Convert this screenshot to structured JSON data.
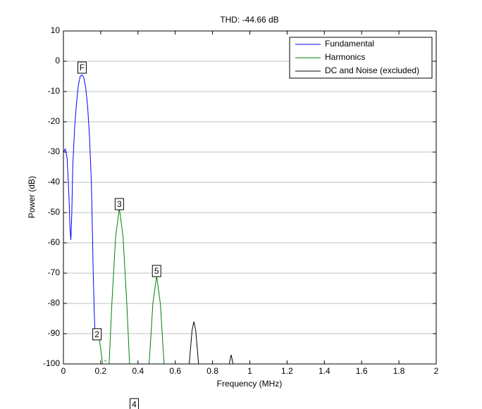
{
  "chart_data": {
    "type": "line",
    "title": "THD: -44.66 dB",
    "x_label": "Frequency (MHz)",
    "y_label": "Power (dB)",
    "xlim": [
      0,
      2
    ],
    "ylim": [
      -100,
      10
    ],
    "xticks": [
      0,
      0.2,
      0.4,
      0.6,
      0.8,
      1,
      1.2,
      1.4,
      1.6,
      1.8,
      2
    ],
    "yticks": [
      10,
      0,
      -10,
      -20,
      -30,
      -40,
      -50,
      -60,
      -70,
      -80,
      -90,
      -100
    ],
    "ygrid": true,
    "legend": "upper right",
    "series": [
      {
        "name": "Fundamental",
        "color": "#0000ff",
        "x": [
          0,
          0.01,
          0.02,
          0.03,
          0.035,
          0.04,
          0.045,
          0.05,
          0.06,
          0.07,
          0.08,
          0.09,
          0.1,
          0.11,
          0.12,
          0.13,
          0.14,
          0.15,
          0.155,
          0.16,
          0.165,
          0.17,
          0.18,
          0.19
        ],
        "values": [
          -30,
          -29,
          -32,
          -45,
          -55,
          -59,
          -50,
          -35,
          -22,
          -14,
          -8,
          -5,
          -4.5,
          -5.5,
          -9,
          -15,
          -25,
          -40,
          -55,
          -70,
          -82,
          -91,
          -92,
          -91
        ]
      },
      {
        "name": "Harmonics",
        "color": "#008000",
        "x": [
          0.19,
          0.2,
          0.21,
          0.215,
          0.22,
          0.23,
          0.235,
          0.245,
          0.26,
          0.28,
          0.3,
          0.32,
          0.34,
          0.355,
          0.4,
          0.46,
          0.48,
          0.5,
          0.52,
          0.54
        ],
        "values": [
          -91,
          -95,
          -100,
          null,
          -99,
          -99,
          null,
          -100,
          -80,
          -58,
          -48.5,
          -58,
          -80,
          -100,
          null,
          -100,
          -80,
          -71,
          -80,
          -100
        ]
      },
      {
        "name": "DC and Noise (excluded)",
        "color": "#000000",
        "x": [
          0.675,
          0.69,
          0.7,
          0.71,
          0.725,
          0.8,
          0.89,
          0.9,
          0.91
        ],
        "values": [
          -100,
          -89,
          -86,
          -89,
          -100,
          null,
          -100,
          -97,
          -100
        ]
      }
    ],
    "annotations": [
      {
        "text": "F",
        "x": 0.1,
        "y": -2.1,
        "color": "#0000ff"
      },
      {
        "text": "2",
        "x": 0.18,
        "y": -90.2,
        "color": "#008000"
      },
      {
        "text": "3",
        "x": 0.3,
        "y": -47.2,
        "color": "#008000"
      },
      {
        "text": "4",
        "x": 0.38,
        "y": -113.3,
        "color": "#008000"
      },
      {
        "text": "5",
        "x": 0.5,
        "y": -69.3,
        "color": "#008000"
      }
    ]
  }
}
